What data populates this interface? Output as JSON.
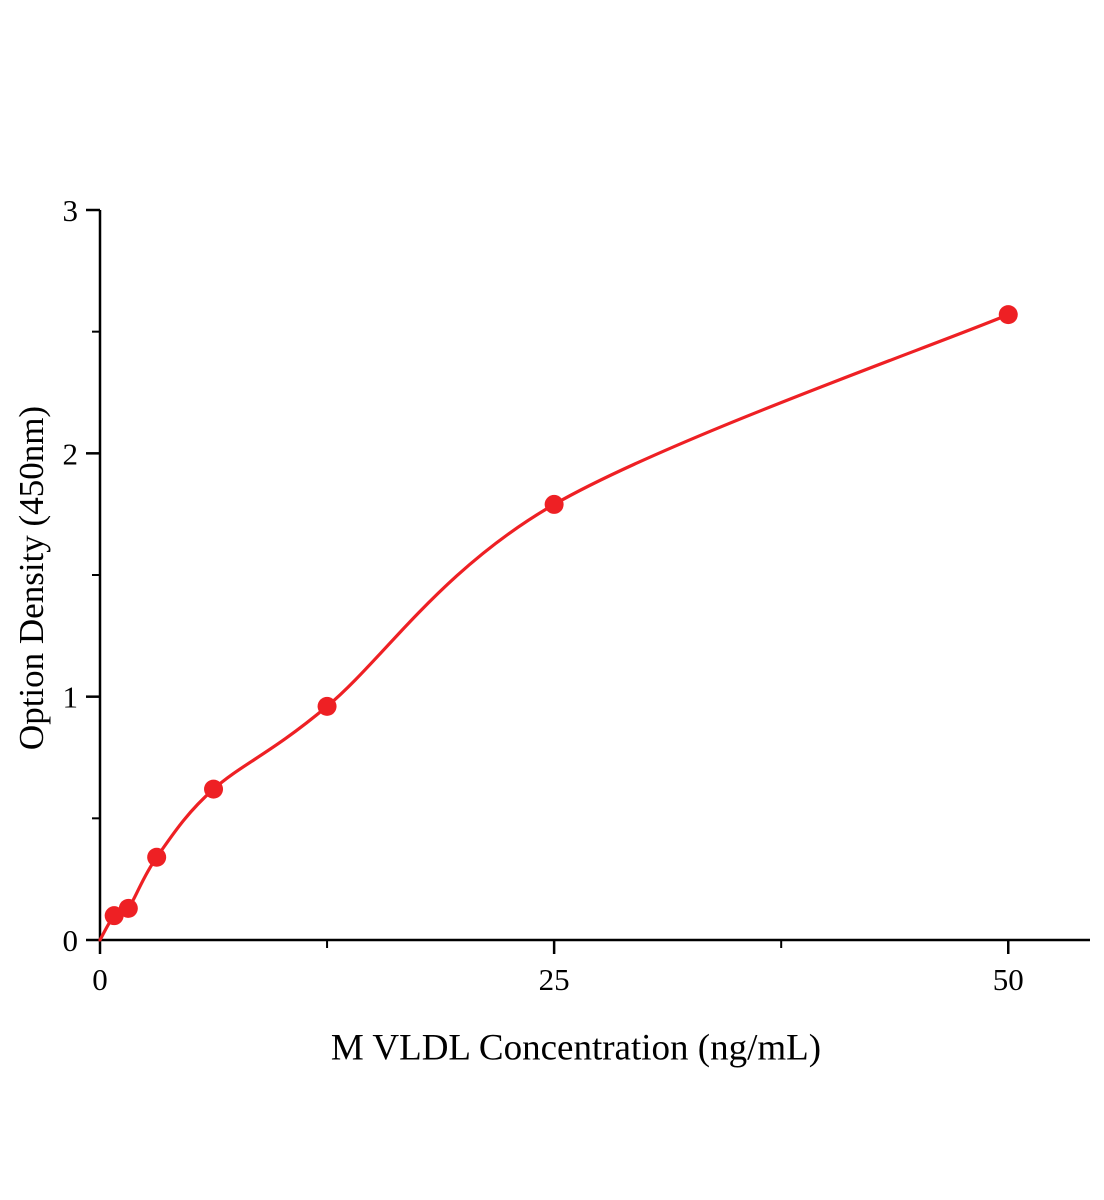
{
  "chart_data": {
    "type": "scatter",
    "title": "",
    "xlabel": "M VLDL Concentration (ng/mL)",
    "ylabel": "Option Density (450nm)",
    "x": [
      0.78,
      1.56,
      3.12,
      6.25,
      12.5,
      25,
      50
    ],
    "y": [
      0.1,
      0.13,
      0.34,
      0.62,
      0.96,
      1.79,
      2.57
    ],
    "fit_curve_start": [
      0,
      0
    ],
    "xlim": [
      0,
      54.5
    ],
    "ylim": [
      0,
      3
    ],
    "xticks": [
      0,
      25,
      50
    ],
    "yticks": [
      0,
      1,
      2,
      3
    ],
    "xticks_minor": [
      12.5,
      37.5
    ],
    "yticks_minor": [
      0.5,
      1.5,
      2.5
    ],
    "grid": false,
    "legend_position": "none",
    "colors": {
      "series": "#ee2024",
      "axis": "#000000"
    }
  }
}
